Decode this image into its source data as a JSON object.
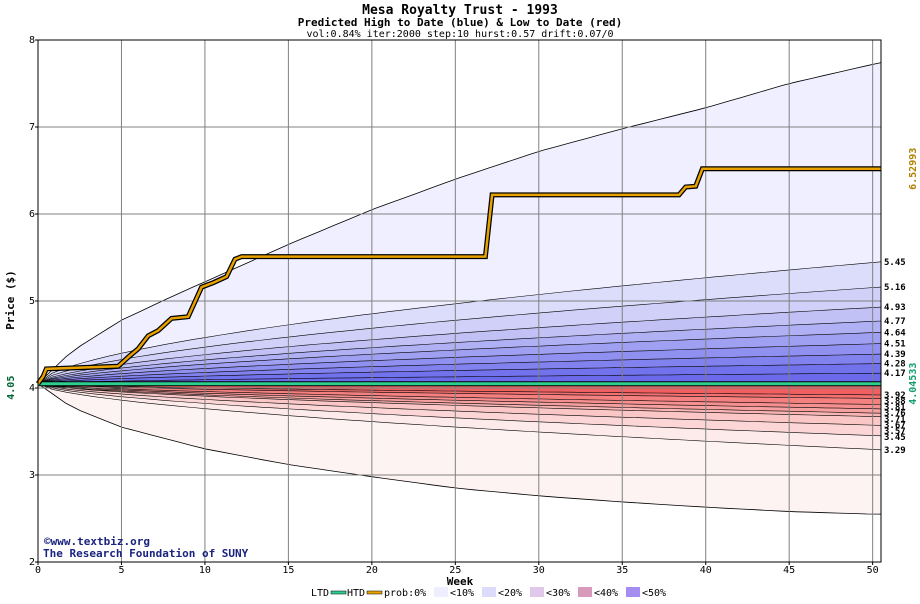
{
  "chart_data": {
    "type": "area",
    "title": "Mesa Royalty Trust - 1993",
    "subtitle": "Predicted High to Date (blue) &  Low to Date (red)",
    "params": "vol:0.84% iter:2000 step:10 hurst:0.57 drift:0.07/0",
    "xlabel": "Week",
    "ylabel": "Price ($)",
    "xlim": [
      0,
      50.5
    ],
    "ylim": [
      2,
      8
    ],
    "x_ticks": [
      0,
      5,
      10,
      15,
      20,
      25,
      30,
      35,
      40,
      45,
      50
    ],
    "y_ticks": [
      2,
      3,
      4,
      5,
      6,
      7,
      8
    ],
    "grid": true,
    "start_price": 4.05,
    "start_price_label": "4.05",
    "high_band_upper": {
      "x": [
        0,
        2,
        5,
        8,
        10,
        15,
        20,
        25,
        30,
        35,
        40,
        45,
        50,
        50.5
      ],
      "y": [
        4.05,
        4.42,
        4.78,
        5.05,
        5.22,
        5.65,
        6.05,
        6.4,
        6.72,
        6.98,
        7.22,
        7.5,
        7.72,
        7.74
      ]
    },
    "low_band_lower": {
      "x": [
        0,
        2,
        5,
        10,
        15,
        20,
        25,
        30,
        35,
        40,
        45,
        50,
        50.5
      ],
      "y": [
        4.05,
        3.78,
        3.55,
        3.3,
        3.12,
        2.98,
        2.85,
        2.76,
        2.69,
        2.63,
        2.58,
        2.55,
        2.55
      ]
    },
    "high_percentiles": [
      {
        "prob": "<10%",
        "end": 5.45,
        "label": "5.45"
      },
      {
        "prob": "<10%",
        "end": 5.16,
        "label": "5.16"
      },
      {
        "prob": "<20%",
        "end": 4.93,
        "label": "4.93"
      },
      {
        "prob": "<20%",
        "end": 4.77,
        "label": "4.77"
      },
      {
        "prob": "<30%",
        "end": 4.64,
        "label": "4.64"
      },
      {
        "prob": "<30%",
        "end": 4.51,
        "label": "4.51"
      },
      {
        "prob": "<40%",
        "end": 4.39,
        "label": "4.39"
      },
      {
        "prob": "<40%",
        "end": 4.28,
        "label": "4.28"
      },
      {
        "prob": "<50%",
        "end": 4.17,
        "label": "4.17"
      }
    ],
    "low_percentiles": [
      {
        "prob": "<50%",
        "end": 3.92,
        "label": "3.92"
      },
      {
        "prob": "<50%",
        "end": 3.88,
        "label": "3.88"
      },
      {
        "prob": "<40%",
        "end": 3.81,
        "label": "3.81"
      },
      {
        "prob": "<40%",
        "end": 3.76,
        "label": "3.76"
      },
      {
        "prob": "<30%",
        "end": 3.71,
        "label": "3.71"
      },
      {
        "prob": "<30%",
        "end": 3.67,
        "label": "3.67"
      },
      {
        "prob": "<20%",
        "end": 3.57,
        "label": "3.57"
      },
      {
        "prob": "<20%",
        "end": 3.45,
        "label": "3.45"
      },
      {
        "prob": "<10%",
        "end": 3.29,
        "label": "3.29"
      }
    ],
    "htd_series": {
      "name": "HTD",
      "color": "#e8a200",
      "x": [
        0,
        0.3,
        0.5,
        4.8,
        5.5,
        6.0,
        6.6,
        7.2,
        8.0,
        9.0,
        9.8,
        10.5,
        11.3,
        11.8,
        12.2,
        26.8,
        27.2,
        38.4,
        38.8,
        39.4,
        39.8,
        50.5
      ],
      "y": [
        4.05,
        4.13,
        4.22,
        4.25,
        4.37,
        4.45,
        4.6,
        4.66,
        4.8,
        4.82,
        5.16,
        5.21,
        5.28,
        5.48,
        5.51,
        5.51,
        6.22,
        6.22,
        6.31,
        6.32,
        6.52,
        6.52
      ],
      "end_label": "6.52993"
    },
    "ltd_series": {
      "name": "LTD",
      "color": "#2ecf8e",
      "x": [
        0,
        50.5
      ],
      "y": [
        4.05,
        4.05
      ],
      "end_label": "4.04533"
    },
    "black_marker": {
      "x": [
        0,
        30.5
      ],
      "y": [
        4.035,
        4.035
      ]
    },
    "legend": {
      "position": "bottom",
      "ltd_label": "LTD",
      "htd_label": "HTD",
      "prob_label": "prob:0%",
      "bins": [
        {
          "label": "<10%",
          "color": "#eeeeff"
        },
        {
          "label": "<20%",
          "color": "#dcdcfa"
        },
        {
          "label": "<30%",
          "color": "#e0c8ea"
        },
        {
          "label": "<40%",
          "color": "#d89aba"
        },
        {
          "label": "<50%",
          "color": "#a48cf0"
        }
      ]
    },
    "credits": [
      "©www.textbiz.org",
      "The Research Foundation of SUNY"
    ]
  }
}
